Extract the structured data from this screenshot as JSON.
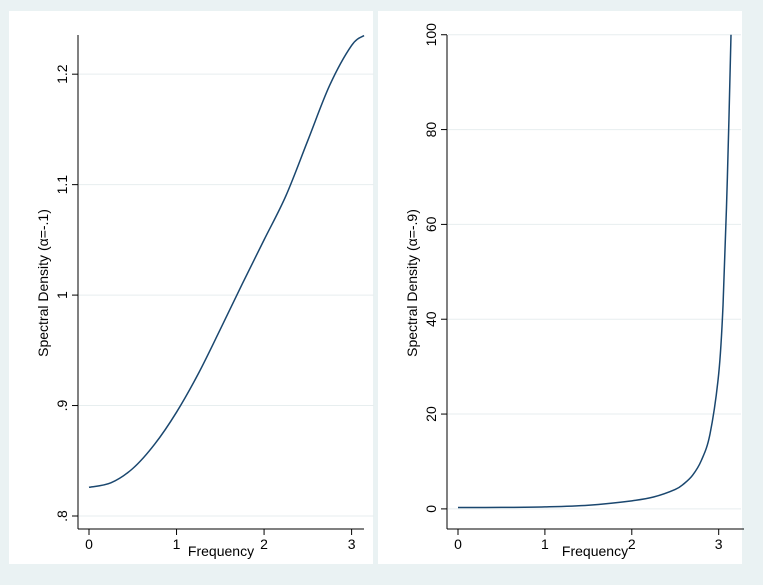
{
  "chart_data": [
    {
      "type": "line",
      "xlabel": "Frequency",
      "ylabel": "Spectral Density (α=-.1)",
      "xlim": [
        0,
        3.1416
      ],
      "ylim": [
        0.8,
        1.24
      ],
      "xticks": [
        0,
        1,
        2,
        3
      ],
      "xtick_labels": [
        "0",
        "1",
        "2",
        "3"
      ],
      "yticks": [
        0.8,
        0.9,
        1.0,
        1.1,
        1.2
      ],
      "ytick_labels": [
        ".8",
        ".9",
        "1",
        "1.1",
        "1.2"
      ],
      "grid": true,
      "legend": "none",
      "line_color": "#1a476f",
      "series": [
        {
          "x": [
            0,
            0.25,
            0.5,
            0.75,
            1.0,
            1.25,
            1.5,
            1.75,
            2.0,
            2.25,
            2.5,
            2.75,
            3.0,
            3.1416
          ],
          "values": [
            0.826,
            0.83,
            0.843,
            0.865,
            0.894,
            0.929,
            0.969,
            1.01,
            1.05,
            1.09,
            1.14,
            1.19,
            1.226,
            1.235
          ]
        }
      ]
    },
    {
      "type": "line",
      "xlabel": "Frequency",
      "ylabel": "Spectral Density (α=-.9)",
      "xlim": [
        0,
        3.1416
      ],
      "ylim": [
        -1.5,
        101
      ],
      "xticks": [
        0,
        1,
        2,
        3
      ],
      "xtick_labels": [
        "0",
        "1",
        "2",
        "3"
      ],
      "yticks": [
        0,
        20,
        40,
        60,
        80,
        100
      ],
      "ytick_labels": [
        "0",
        "20",
        "40",
        "60",
        "80",
        "100"
      ],
      "grid": true,
      "legend": "none",
      "line_color": "#1a476f",
      "series": [
        {
          "x": [
            0,
            0.5,
            1.0,
            1.5,
            2.0,
            2.25,
            2.5,
            2.6,
            2.7,
            2.8,
            2.9,
            3.0,
            3.05,
            3.1,
            3.1416
          ],
          "values": [
            0.28,
            0.31,
            0.43,
            0.78,
            1.7,
            2.5,
            4.1,
            5.3,
            7.1,
            10.2,
            15.8,
            28.5,
            43.0,
            70.0,
            100.0
          ]
        }
      ]
    }
  ]
}
